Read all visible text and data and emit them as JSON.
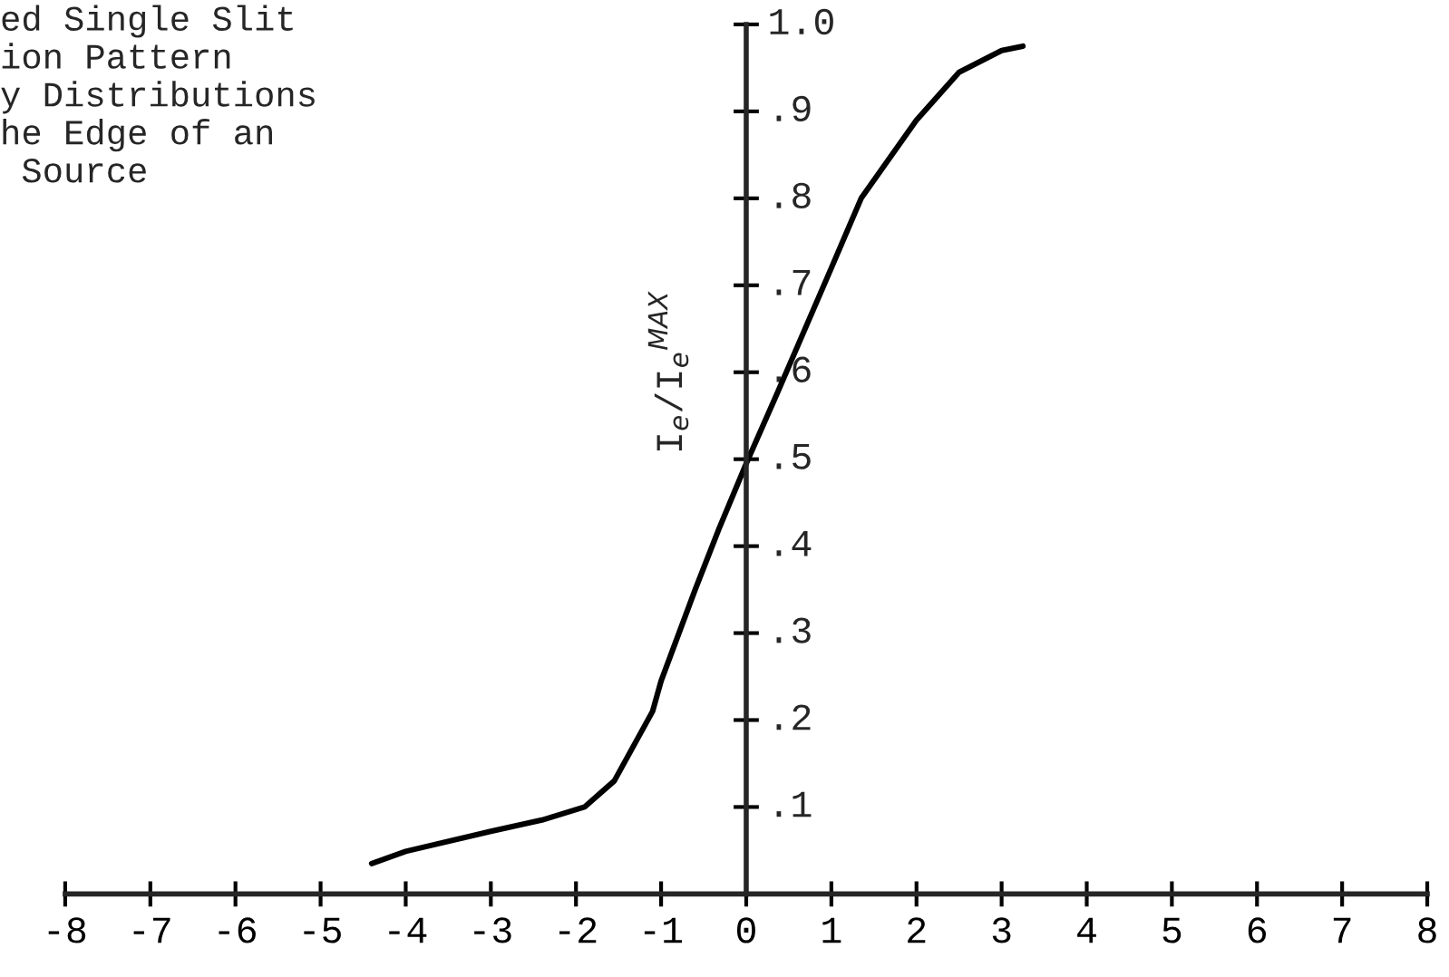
{
  "chart_data": {
    "type": "line",
    "title": "ed Single Slit\nion Pattern\ny Distributions\nhe Edge of an\n Source",
    "ylabel": "I$_{e}$/I$_{e}$$^{MAX}$",
    "series": [
      {
        "color": "#000000",
        "x": [
          -4.4,
          -4,
          -3,
          -2.4,
          -1.9,
          -1.55,
          -1.1,
          -1,
          -0.6,
          -0.32,
          0,
          0.36,
          1.0,
          1.35,
          2.0,
          2.5,
          3.0,
          3.25
        ],
        "values": [
          0.035,
          0.049,
          0.072,
          0.085,
          0.1,
          0.13,
          0.21,
          0.245,
          0.35,
          0.42,
          0.495,
          0.575,
          0.72,
          0.8,
          0.89,
          0.945,
          0.97,
          0.975
        ]
      }
    ],
    "xlim": [
      -8,
      8
    ],
    "ylim": [
      0,
      1.0
    ],
    "xticks": [
      -8,
      -7,
      -6,
      -5,
      -4,
      -3,
      -2,
      -1,
      0,
      1,
      2,
      3,
      4,
      5,
      6,
      7,
      8
    ],
    "yticks": [
      {
        "value": 0.1,
        "label": ".1"
      },
      {
        "value": 0.2,
        "label": ".2"
      },
      {
        "value": 0.3,
        "label": ".3"
      },
      {
        "value": 0.4,
        "label": ".4"
      },
      {
        "value": 0.5,
        "label": ".5"
      },
      {
        "value": 0.6,
        "label": ".6"
      },
      {
        "value": 0.7,
        "label": ".7"
      },
      {
        "value": 0.8,
        "label": ".8"
      },
      {
        "value": 0.9,
        "label": ".9"
      },
      {
        "value": 1.0,
        "label": "1.0"
      }
    ],
    "grid": false,
    "legend": false,
    "marker": "none",
    "line_style": "solid"
  }
}
